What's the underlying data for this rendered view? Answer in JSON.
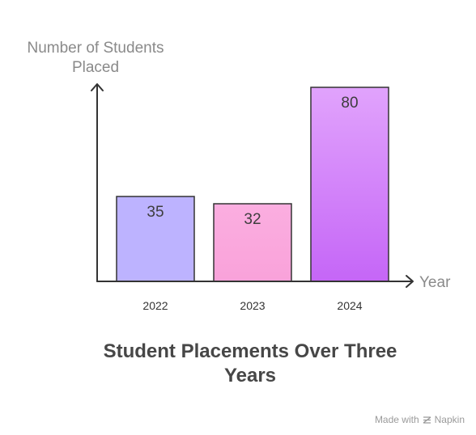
{
  "chart_data": {
    "type": "bar",
    "title": "Student Placements Over Three Years",
    "xlabel": "Year",
    "ylabel": "Number of Students Placed",
    "categories": [
      "2022",
      "2023",
      "2024"
    ],
    "values": [
      35,
      32,
      80
    ],
    "ylim": [
      0,
      80
    ],
    "grid": false,
    "bar_colors": [
      {
        "top": "#bdb3ff",
        "bottom": "#bdb3ff"
      },
      {
        "top": "#fbaee0",
        "bottom": "#f9a2da"
      },
      {
        "top": "#e1a3fc",
        "bottom": "#c566f7"
      }
    ],
    "bar_outline": "#333333",
    "value_label_color": "#3d3d3d",
    "axis_color": "#333333"
  },
  "watermark": {
    "made_with": "Made with",
    "brand": "Napkin"
  }
}
